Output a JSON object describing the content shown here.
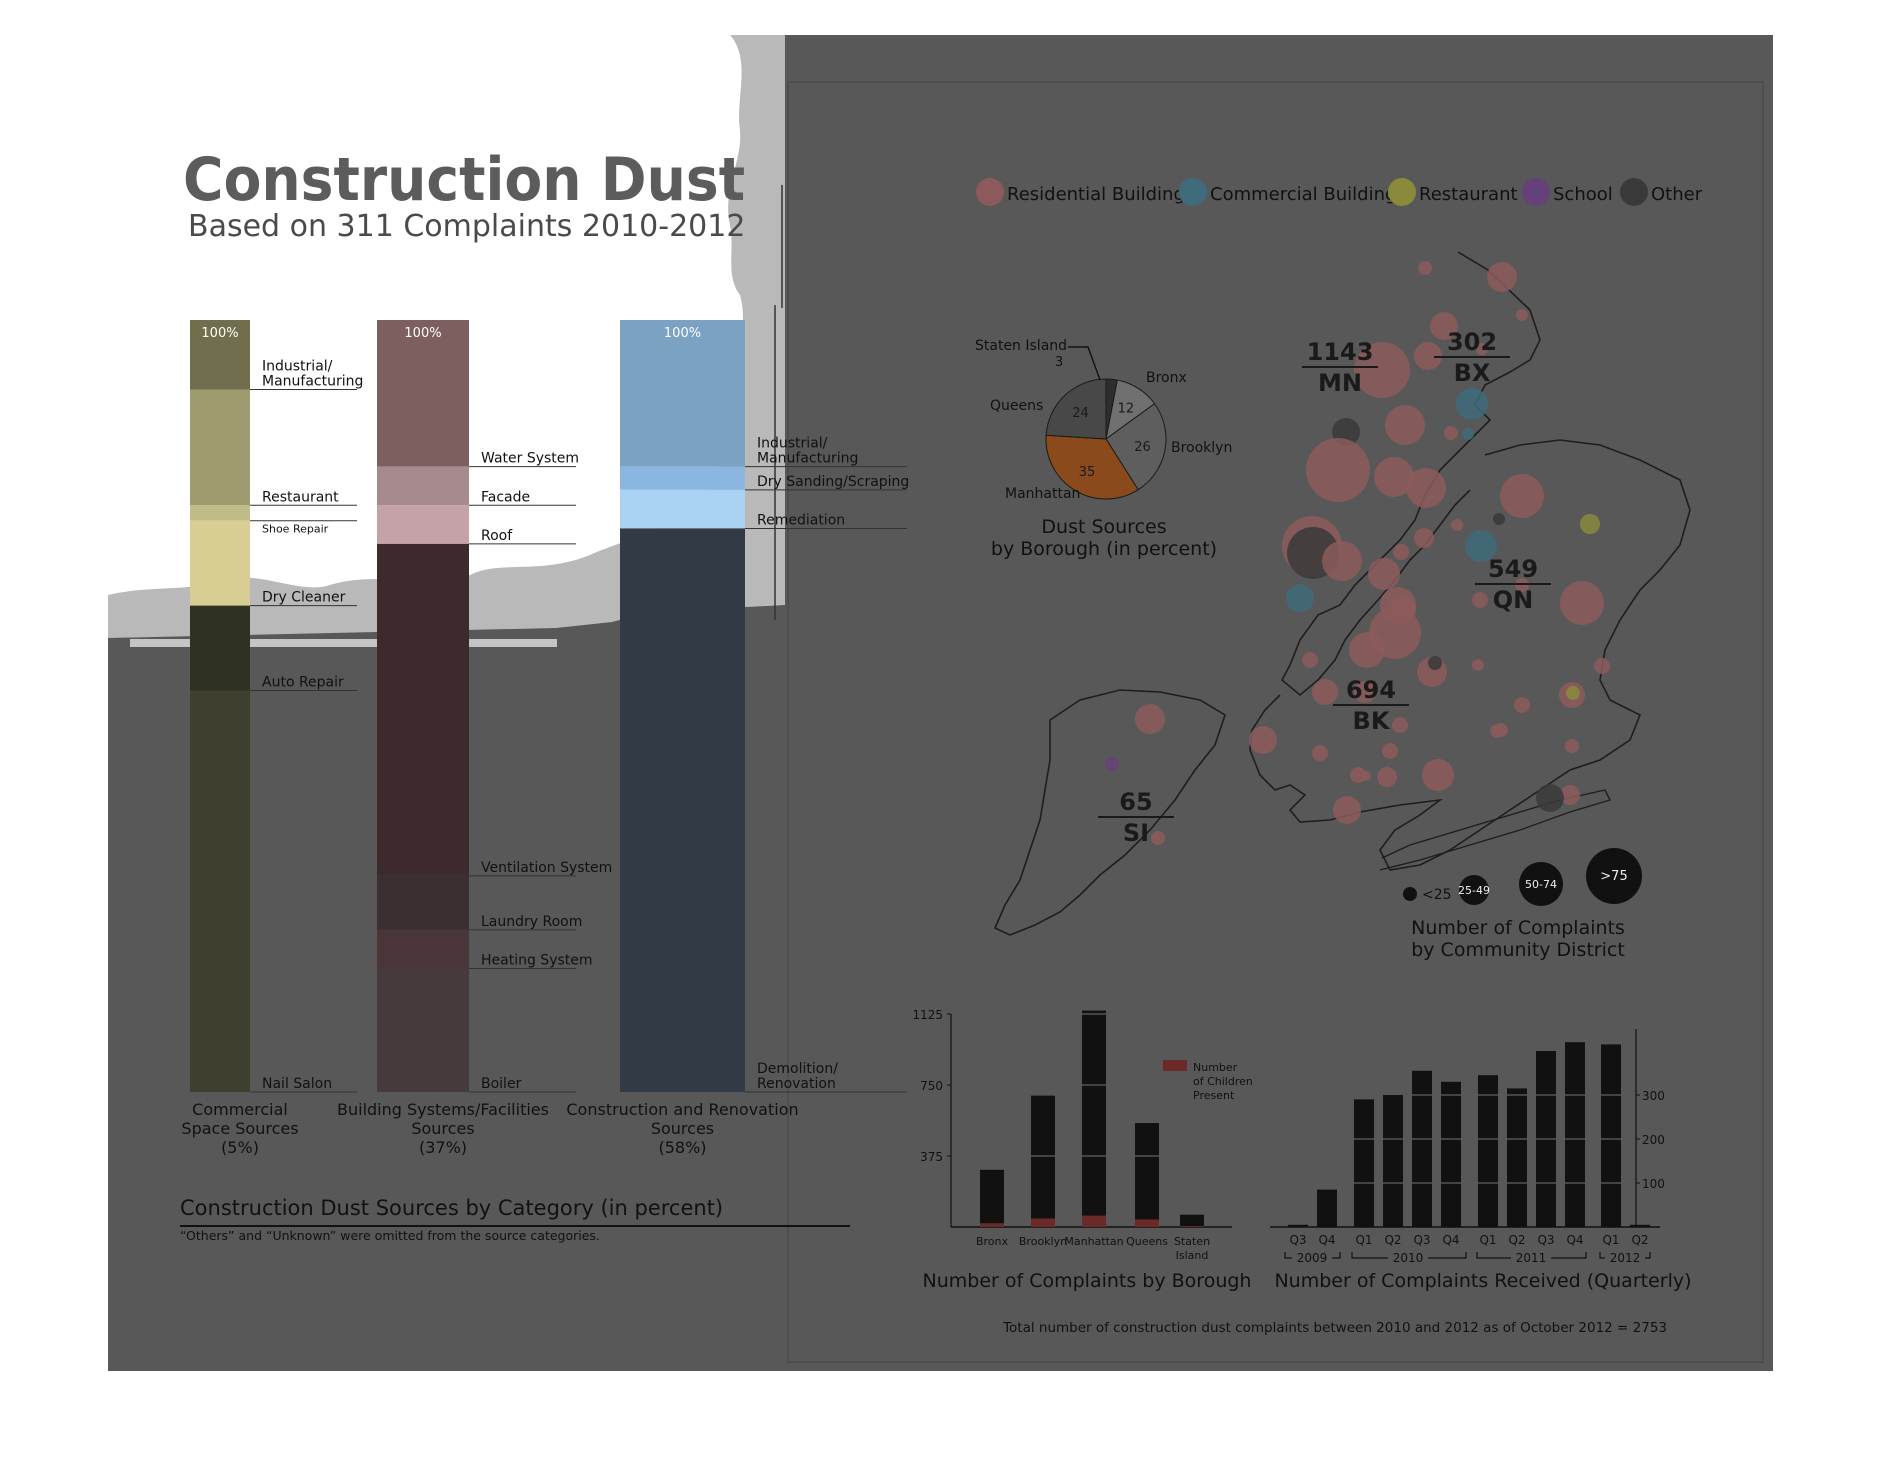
{
  "header": {
    "title": "Construction Dust",
    "subtitle": "Based on 311 Complaints 2010-2012"
  },
  "stacked": {
    "title": "Construction Dust Sources by Category (in percent)",
    "footnote": "“Others” and “Unknown” were omitted from the source categories.",
    "columns": [
      {
        "top_label": "100%",
        "caption": [
          "Commercial",
          "Space Sources",
          "(5%)"
        ],
        "segments": [
          {
            "label": "Industrial/\nManufacturing",
            "value": 9,
            "color": "#716e4d"
          },
          {
            "label": "Restaurant",
            "value": 15,
            "color": "#9d9a6d"
          },
          {
            "label": "Shoe Repair",
            "value": 2,
            "color": "#c0bc88"
          },
          {
            "label": "Dry Cleaner",
            "value": 11,
            "color": "#d8ce93"
          },
          {
            "label": "Auto Repair",
            "value": 11,
            "color": "#2f3122"
          },
          {
            "label": "Nail Salon",
            "value": 52,
            "color": "#3f3f30"
          }
        ]
      },
      {
        "top_label": "100%",
        "caption": [
          "Building Systems/Facilities",
          "Sources",
          "(37%)"
        ],
        "segments": [
          {
            "label": "Water System",
            "value": 19,
            "color": "#7d5f5f"
          },
          {
            "label": "Facade",
            "value": 5,
            "color": "#a78a8d"
          },
          {
            "label": "Roof",
            "value": 5,
            "color": "#c3a2a8"
          },
          {
            "label": "Ventilation System",
            "value": 43,
            "color": "#3d2a2d"
          },
          {
            "label": "Laundry Room",
            "value": 7,
            "color": "#3a2f31"
          },
          {
            "label": "Heating System",
            "value": 5,
            "color": "#4a3538"
          },
          {
            "label": "Boiler",
            "value": 16,
            "color": "#473a3c"
          }
        ]
      },
      {
        "top_label": "100%",
        "caption": [
          "Construction and Renovation",
          "Sources",
          "(58%)"
        ],
        "segments": [
          {
            "label": "Industrial/\nManufacturing",
            "value": 19,
            "color": "#7ba1c3"
          },
          {
            "label": "Dry Sanding/Scraping",
            "value": 3,
            "color": "#8ab7df"
          },
          {
            "label": "Remediation",
            "value": 5,
            "color": "#a9d2f3"
          },
          {
            "label": "Demolition/\nRenovation",
            "value": 73,
            "color": "#323a45"
          }
        ]
      }
    ]
  },
  "map": {
    "legend": [
      {
        "label": "Residential Building",
        "color": "#8c5a5c"
      },
      {
        "label": "Commercial Building",
        "color": "#3f6b7a"
      },
      {
        "label": "Restaurant",
        "color": "#8a8a3c"
      },
      {
        "label": "School",
        "color": "#66407a"
      },
      {
        "label": "Other",
        "color": "#3a3a3a"
      }
    ],
    "boroughs": [
      {
        "count": "1143",
        "abbr": "MN"
      },
      {
        "count": "302",
        "abbr": "BX"
      },
      {
        "count": "549",
        "abbr": "QN"
      },
      {
        "count": "694",
        "abbr": "BK"
      },
      {
        "count": "65",
        "abbr": "SI"
      }
    ],
    "size_legend": [
      {
        "label": "<25"
      },
      {
        "label": "25-49"
      },
      {
        "label": "50-74"
      },
      {
        "label": ">75"
      }
    ],
    "size_title": [
      "Number of Complaints",
      "by Community District"
    ]
  },
  "chart_data": [
    {
      "type": "pie",
      "title": "Dust Sources by Borough (in percent)",
      "title_lines": [
        "Dust Sources",
        "by Borough (in percent)"
      ],
      "labels": [
        "Bronx",
        "Brooklyn",
        "Manhattan",
        "Queens",
        "Staten Island"
      ],
      "values": [
        12,
        26,
        35,
        24,
        3
      ],
      "colors": [
        "#707070",
        "#5e5e5e",
        "#8a4a1c",
        "#484848",
        "#2e2e2e"
      ],
      "label_text": {
        "staten": "Staten Island",
        "staten_value": "3"
      }
    },
    {
      "type": "bar",
      "title": "Number of Complaints by Borough",
      "categories": [
        "Bronx",
        "Brooklyn",
        "Manhattan",
        "Queens",
        "Staten Island"
      ],
      "category_lines": [
        [
          "Bronx"
        ],
        [
          "Brooklyn"
        ],
        [
          "Manhattan"
        ],
        [
          "Queens"
        ],
        [
          "Staten",
          "Island"
        ]
      ],
      "series": [
        {
          "name": "Number of Children Present",
          "values": [
            20,
            45,
            60,
            40,
            5
          ]
        },
        {
          "values": [
            302,
            694,
            1143,
            549,
            65
          ]
        }
      ],
      "ylim": [
        0,
        1125
      ],
      "yticks": [
        "375",
        "750",
        "1125"
      ],
      "ytick_values": [
        375,
        750,
        1125
      ],
      "legend": [
        "Number",
        "of Children",
        "Present"
      ],
      "legend_color": "#6b2a28",
      "bar_color": "#111111"
    },
    {
      "type": "bar",
      "title": "Number of Complaints Received (Quarterly)",
      "categories": [
        "Q3",
        "Q4",
        "Q1",
        "Q2",
        "Q3",
        "Q4",
        "Q1",
        "Q2",
        "Q3",
        "Q4",
        "Q1",
        "Q2"
      ],
      "year_labels": [
        "2009",
        "2010",
        "2011",
        "2012"
      ],
      "values": [
        5,
        85,
        290,
        300,
        355,
        330,
        345,
        315,
        400,
        420,
        415,
        5
      ],
      "ylim": [
        0,
        450
      ],
      "yticks": [
        "100",
        "200",
        "300"
      ],
      "ytick_values": [
        100,
        200,
        300
      ],
      "bar_color": "#111111"
    }
  ],
  "total_note": "Total number of construction dust complaints between 2010 and 2012 as of October 2012 = 2753"
}
